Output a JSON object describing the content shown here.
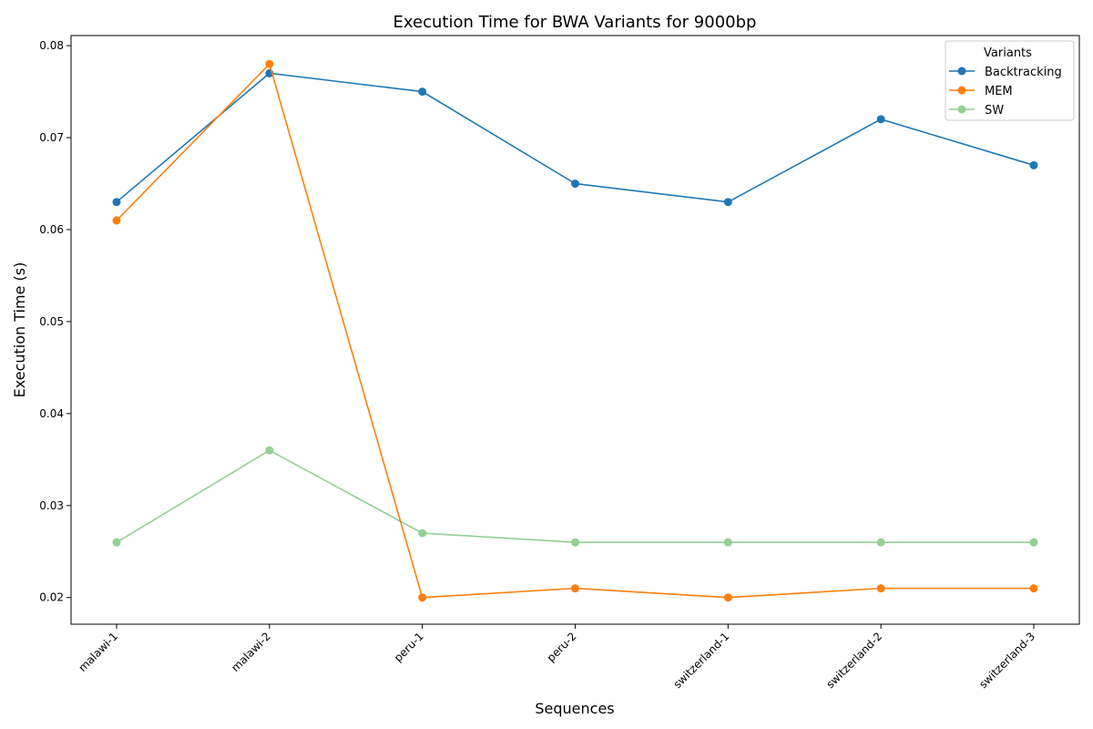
{
  "chart_data": {
    "type": "line",
    "title": "Execution Time for BWA Variants for 9000bp",
    "xlabel": "Sequences",
    "ylabel": "Execution Time (s)",
    "categories": [
      "malawi-1",
      "malawi-2",
      "peru-1",
      "peru-2",
      "switzerland-1",
      "switzerland-2",
      "switzerland-3"
    ],
    "ylim": [
      0.0171,
      0.0811
    ],
    "yticks": [
      "0.02",
      "0.03",
      "0.04",
      "0.05",
      "0.06",
      "0.07",
      "0.08"
    ],
    "ytick_values": [
      0.02,
      0.03,
      0.04,
      0.05,
      0.06,
      0.07,
      0.08
    ],
    "grid": false,
    "legend": {
      "title": "Variants",
      "position": "top-right"
    },
    "series": [
      {
        "name": "Backtracking",
        "color": "#1f77b4",
        "opacity": 1.0,
        "values": [
          0.063,
          0.077,
          0.075,
          0.065,
          0.063,
          0.072,
          0.067
        ]
      },
      {
        "name": "MEM",
        "color": "#ff7f0e",
        "opacity": 1.0,
        "values": [
          0.061,
          0.078,
          0.02,
          0.021,
          0.02,
          0.021,
          0.021
        ]
      },
      {
        "name": "SW",
        "color": "#2ca02c",
        "opacity": 0.5,
        "values": [
          0.026,
          0.036,
          0.027,
          0.026,
          0.026,
          0.026,
          0.026
        ]
      }
    ]
  }
}
